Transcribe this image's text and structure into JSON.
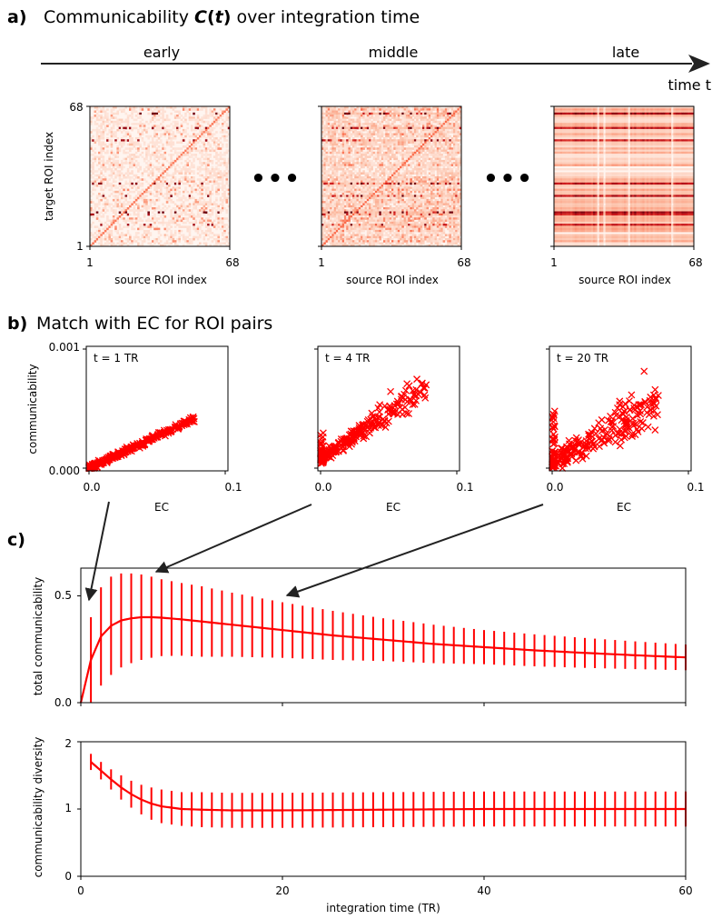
{
  "panel_a": {
    "letter": "a)",
    "title_prefix": "Communicability ",
    "title_symbol": "C",
    "title_open": "(",
    "title_var": "t",
    "title_close": ")",
    "title_suffix": " over integration time",
    "time_arrow_label": "time t",
    "phases": [
      "early",
      "middle",
      "late"
    ],
    "ellipsis": "•••",
    "ylabel": "target ROI index",
    "xlabel": "source ROI index",
    "tick_min": "1",
    "tick_max": "68",
    "colormap": [
      "#fff5f0",
      "#fcbba1",
      "#fb6a4a",
      "#cb181d",
      "#67000d"
    ]
  },
  "chart_data": [
    {
      "type": "scatter",
      "panel": "b-1",
      "annotation": "t = 1 TR",
      "xlabel": "EC",
      "ylabel": "communicability",
      "xlim": [
        0.0,
        0.1
      ],
      "ylim": [
        0.0,
        0.001
      ],
      "xticks": [
        "0.0",
        "0.1"
      ],
      "yticks": [
        "0.000",
        "0.001"
      ],
      "marker_color": "#ff0000",
      "trend": {
        "x_max": 0.078,
        "y_at_x_max": 0.00042
      }
    },
    {
      "type": "scatter",
      "panel": "b-2",
      "annotation": "t = 4 TR",
      "xlabel": "EC",
      "xlim": [
        0.0,
        0.1
      ],
      "xticks": [
        "0.0",
        "0.1"
      ],
      "marker_color": "#ff0000"
    },
    {
      "type": "scatter",
      "panel": "b-3",
      "annotation": "t = 20 TR",
      "xlabel": "EC",
      "xlim": [
        0.0,
        0.1
      ],
      "xticks": [
        "0.0",
        "0.1"
      ],
      "marker_color": "#ff0000"
    },
    {
      "type": "line",
      "panel": "c-top",
      "ylabel": "total communicability",
      "xlim": [
        0,
        60
      ],
      "ylim": [
        0,
        0.63
      ],
      "yticks": [
        "0.0",
        "0.5"
      ],
      "color": "#ff0000",
      "x": [
        0,
        1,
        2,
        3,
        4,
        5,
        6,
        7,
        8,
        10,
        12,
        15,
        20,
        25,
        30,
        35,
        40,
        45,
        50,
        55,
        60
      ],
      "mean": [
        0.0,
        0.2,
        0.31,
        0.36,
        0.385,
        0.395,
        0.4,
        0.4,
        0.398,
        0.39,
        0.38,
        0.365,
        0.34,
        0.315,
        0.295,
        0.275,
        0.26,
        0.245,
        0.233,
        0.222,
        0.212
      ],
      "err": [
        0.0,
        0.2,
        0.23,
        0.23,
        0.22,
        0.21,
        0.2,
        0.19,
        0.18,
        0.17,
        0.165,
        0.15,
        0.13,
        0.115,
        0.1,
        0.09,
        0.08,
        0.075,
        0.07,
        0.065,
        0.06
      ]
    },
    {
      "type": "line",
      "panel": "c-bottom",
      "xlabel": "integration time (TR)",
      "ylabel": "communicability diversity",
      "xlim": [
        0,
        60
      ],
      "ylim": [
        0,
        2
      ],
      "xticks": [
        "0",
        "20",
        "40",
        "60"
      ],
      "yticks": [
        "0",
        "1",
        "2"
      ],
      "color": "#ff0000",
      "x": [
        1,
        2,
        3,
        4,
        5,
        6,
        7,
        8,
        9,
        10,
        12,
        15,
        20,
        30,
        40,
        50,
        60
      ],
      "mean": [
        1.7,
        1.57,
        1.44,
        1.32,
        1.22,
        1.14,
        1.08,
        1.04,
        1.02,
        1.0,
        0.99,
        0.98,
        0.98,
        0.99,
        1.0,
        1.0,
        1.0
      ],
      "err": [
        0.12,
        0.13,
        0.15,
        0.18,
        0.2,
        0.22,
        0.24,
        0.25,
        0.25,
        0.25,
        0.26,
        0.26,
        0.26,
        0.26,
        0.26,
        0.26,
        0.26
      ]
    }
  ],
  "panel_b": {
    "letter": "b)",
    "title": "Match with EC for ROI pairs"
  },
  "panel_c": {
    "letter": "c)"
  }
}
